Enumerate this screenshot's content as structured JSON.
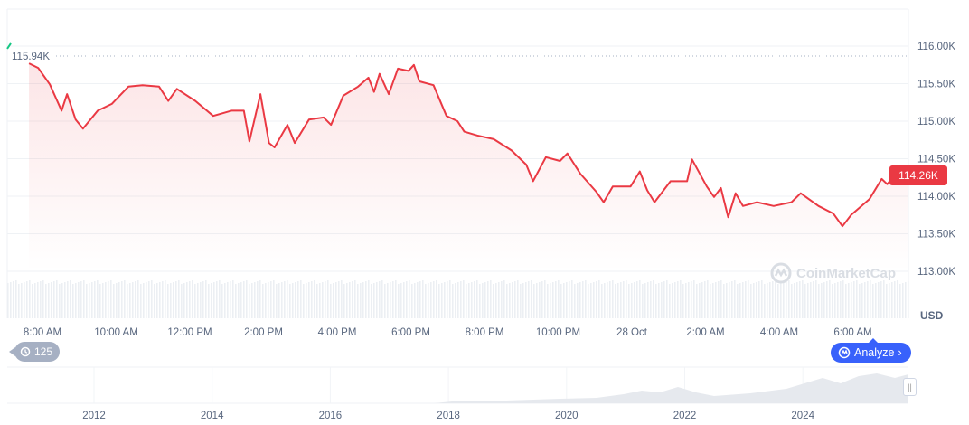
{
  "chart_data": {
    "type": "area",
    "currency_label": "USD",
    "y_ticks": [
      "116.00K",
      "115.50K",
      "115.00K",
      "114.50K",
      "114.00K",
      "113.50K",
      "113.00K"
    ],
    "y_tick_values": [
      116.0,
      115.5,
      115.0,
      114.5,
      114.0,
      113.5,
      113.0
    ],
    "ylim": [
      112.6,
      116.6
    ],
    "x_ticks": [
      "8:00 AM",
      "10:00 AM",
      "12:00 PM",
      "2:00 PM",
      "4:00 PM",
      "6:00 PM",
      "8:00 PM",
      "10:00 PM",
      "28 Oct",
      "2:00 AM",
      "4:00 AM",
      "6:00 AM"
    ],
    "high_label": "115.94K",
    "high_value": 115.94,
    "current_label": "114.26K",
    "line_color": "#ea3943",
    "grid": true,
    "points": [
      [
        "07:38",
        115.77
      ],
      [
        "07:53",
        115.71
      ],
      [
        "08:12",
        115.49
      ],
      [
        "08:31",
        115.14
      ],
      [
        "08:40",
        115.36
      ],
      [
        "08:54",
        115.02
      ],
      [
        "09:06",
        114.9
      ],
      [
        "09:30",
        115.14
      ],
      [
        "09:53",
        115.23
      ],
      [
        "10:20",
        115.46
      ],
      [
        "10:43",
        115.48
      ],
      [
        "11:10",
        115.46
      ],
      [
        "11:25",
        115.27
      ],
      [
        "11:39",
        115.43
      ],
      [
        "12:09",
        115.27
      ],
      [
        "12:38",
        115.07
      ],
      [
        "13:08",
        115.14
      ],
      [
        "13:28",
        115.14
      ],
      [
        "13:37",
        114.73
      ],
      [
        "13:55",
        115.36
      ],
      [
        "14:09",
        114.71
      ],
      [
        "14:18",
        114.65
      ],
      [
        "14:39",
        114.95
      ],
      [
        "14:51",
        114.71
      ],
      [
        "15:14",
        115.02
      ],
      [
        "15:38",
        115.05
      ],
      [
        "15:50",
        114.95
      ],
      [
        "16:10",
        115.34
      ],
      [
        "16:34",
        115.46
      ],
      [
        "16:51",
        115.58
      ],
      [
        "17:00",
        115.39
      ],
      [
        "17:09",
        115.63
      ],
      [
        "17:24",
        115.36
      ],
      [
        "17:39",
        115.7
      ],
      [
        "17:56",
        115.67
      ],
      [
        "18:05",
        115.75
      ],
      [
        "18:14",
        115.53
      ],
      [
        "18:37",
        115.48
      ],
      [
        "18:58",
        115.07
      ],
      [
        "19:16",
        115.0
      ],
      [
        "19:27",
        114.86
      ],
      [
        "19:48",
        114.81
      ],
      [
        "20:15",
        114.76
      ],
      [
        "20:44",
        114.61
      ],
      [
        "21:08",
        114.42
      ],
      [
        "21:19",
        114.2
      ],
      [
        "21:40",
        114.52
      ],
      [
        "22:03",
        114.47
      ],
      [
        "22:15",
        114.57
      ],
      [
        "22:36",
        114.3
      ],
      [
        "23:02",
        114.06
      ],
      [
        "23:14",
        113.92
      ],
      [
        "23:29",
        114.13
      ],
      [
        "23:58",
        114.13
      ],
      [
        "00:13",
        114.33
      ],
      [
        "00:25",
        114.08
      ],
      [
        "00:37",
        113.92
      ],
      [
        "01:03",
        114.2
      ],
      [
        "01:30",
        114.2
      ],
      [
        "01:38",
        114.49
      ],
      [
        "02:02",
        114.13
      ],
      [
        "02:14",
        113.99
      ],
      [
        "02:25",
        114.11
      ],
      [
        "02:37",
        113.72
      ],
      [
        "02:49",
        114.04
      ],
      [
        "03:01",
        113.87
      ],
      [
        "03:24",
        113.92
      ],
      [
        "03:51",
        113.87
      ],
      [
        "04:20",
        113.92
      ],
      [
        "04:35",
        114.04
      ],
      [
        "05:04",
        113.87
      ],
      [
        "05:28",
        113.77
      ],
      [
        "05:43",
        113.6
      ],
      [
        "05:57",
        113.75
      ],
      [
        "06:27",
        113.96
      ],
      [
        "06:47",
        114.23
      ],
      [
        "06:56",
        114.16
      ],
      [
        "07:05",
        114.25
      ],
      [
        "07:17",
        114.2
      ],
      [
        "07:30",
        114.26
      ]
    ],
    "navigator_years": [
      "2012",
      "2014",
      "2016",
      "2018",
      "2020",
      "2022",
      "2024"
    ]
  },
  "controls": {
    "history_count": "125",
    "analyze_label": "Analyze",
    "watermark": "CoinMarketCap"
  }
}
